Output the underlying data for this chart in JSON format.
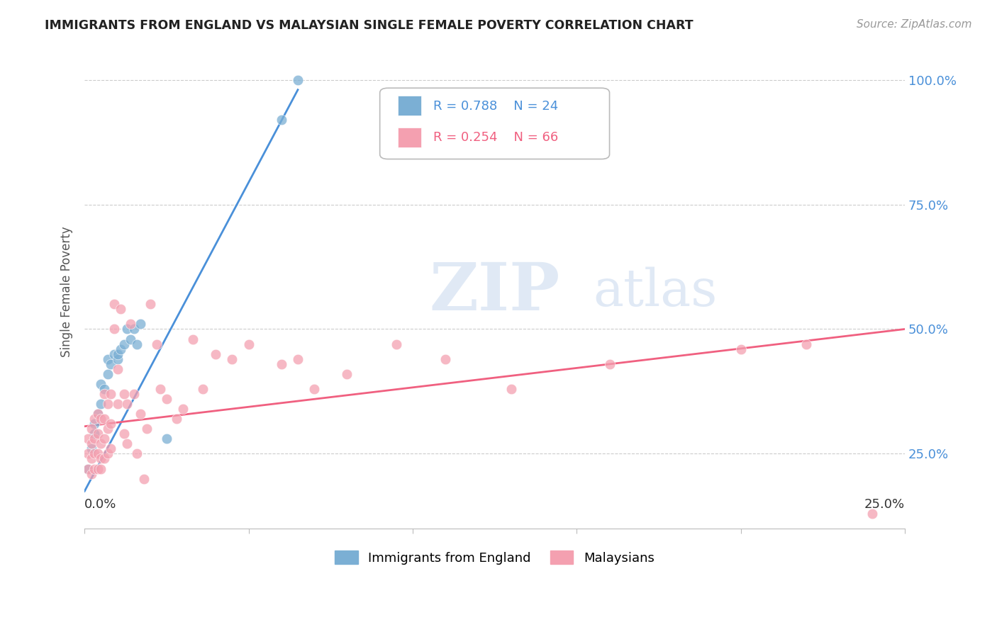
{
  "title": "IMMIGRANTS FROM ENGLAND VS MALAYSIAN SINGLE FEMALE POVERTY CORRELATION CHART",
  "source": "Source: ZipAtlas.com",
  "ylabel": "Single Female Poverty",
  "x_range": [
    0.0,
    0.25
  ],
  "y_range": [
    0.1,
    1.05
  ],
  "england_R": 0.788,
  "england_N": 24,
  "malaysia_R": 0.254,
  "malaysia_N": 66,
  "england_color": "#7bafd4",
  "malaysia_color": "#f4a0b0",
  "england_line_color": "#4a90d9",
  "malaysia_line_color": "#f06080",
  "england_line_x": [
    0.0,
    0.065
  ],
  "england_line_y": [
    0.175,
    0.98
  ],
  "malaysia_line_x": [
    0.0,
    0.25
  ],
  "malaysia_line_y": [
    0.305,
    0.5
  ],
  "eng_x": [
    0.001,
    0.002,
    0.003,
    0.003,
    0.004,
    0.005,
    0.005,
    0.006,
    0.007,
    0.007,
    0.008,
    0.009,
    0.01,
    0.01,
    0.011,
    0.012,
    0.013,
    0.014,
    0.015,
    0.016,
    0.017,
    0.025,
    0.06,
    0.065
  ],
  "eng_y": [
    0.22,
    0.26,
    0.29,
    0.31,
    0.33,
    0.35,
    0.39,
    0.38,
    0.41,
    0.44,
    0.43,
    0.45,
    0.44,
    0.45,
    0.46,
    0.47,
    0.5,
    0.48,
    0.5,
    0.47,
    0.51,
    0.28,
    0.92,
    1.0
  ],
  "mal_x": [
    0.001,
    0.001,
    0.001,
    0.002,
    0.002,
    0.002,
    0.002,
    0.003,
    0.003,
    0.003,
    0.003,
    0.004,
    0.004,
    0.004,
    0.004,
    0.005,
    0.005,
    0.005,
    0.005,
    0.006,
    0.006,
    0.006,
    0.006,
    0.007,
    0.007,
    0.007,
    0.008,
    0.008,
    0.008,
    0.009,
    0.009,
    0.01,
    0.01,
    0.011,
    0.012,
    0.012,
    0.013,
    0.013,
    0.014,
    0.015,
    0.016,
    0.017,
    0.018,
    0.019,
    0.02,
    0.022,
    0.023,
    0.025,
    0.028,
    0.03,
    0.033,
    0.036,
    0.04,
    0.045,
    0.05,
    0.06,
    0.065,
    0.07,
    0.08,
    0.095,
    0.11,
    0.13,
    0.16,
    0.2,
    0.22,
    0.24
  ],
  "mal_y": [
    0.22,
    0.25,
    0.28,
    0.21,
    0.24,
    0.27,
    0.3,
    0.22,
    0.25,
    0.28,
    0.32,
    0.22,
    0.25,
    0.29,
    0.33,
    0.22,
    0.24,
    0.27,
    0.32,
    0.24,
    0.28,
    0.32,
    0.37,
    0.25,
    0.3,
    0.35,
    0.26,
    0.31,
    0.37,
    0.5,
    0.55,
    0.35,
    0.42,
    0.54,
    0.29,
    0.37,
    0.27,
    0.35,
    0.51,
    0.37,
    0.25,
    0.33,
    0.2,
    0.3,
    0.55,
    0.47,
    0.38,
    0.36,
    0.32,
    0.34,
    0.48,
    0.38,
    0.45,
    0.44,
    0.47,
    0.43,
    0.44,
    0.38,
    0.41,
    0.47,
    0.44,
    0.38,
    0.43,
    0.46,
    0.47,
    0.13
  ],
  "y_ticks": [
    0.25,
    0.5,
    0.75,
    1.0
  ],
  "y_tick_labels": [
    "25.0%",
    "50.0%",
    "75.0%",
    "100.0%"
  ],
  "x_tick_positions": [
    0.0,
    0.05,
    0.1,
    0.15,
    0.2,
    0.25
  ]
}
